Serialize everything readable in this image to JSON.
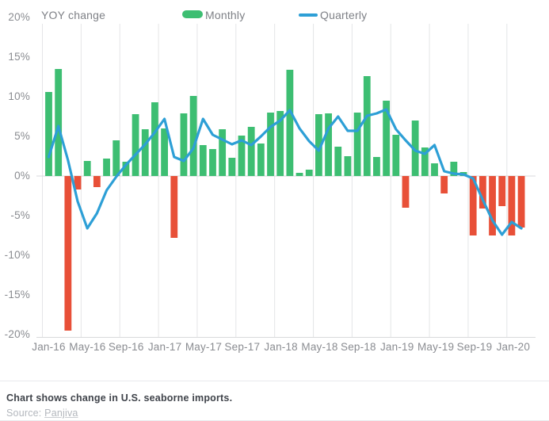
{
  "header": {
    "title": "YOY change",
    "legend": [
      {
        "label": "Monthly",
        "swatch": "green-bar-swatch"
      },
      {
        "label": "Quarterly",
        "swatch": "blue-line-swatch"
      }
    ]
  },
  "chart_data": {
    "type": "bar",
    "title": "YOY change",
    "xlabel": "",
    "ylabel": "YOY change (%)",
    "ylim": [
      -20,
      20
    ],
    "grid": "vertical-only",
    "legend_position": "top",
    "unit": "%",
    "months": [
      "Jan-16",
      "Feb-16",
      "Mar-16",
      "Apr-16",
      "May-16",
      "Jun-16",
      "Jul-16",
      "Aug-16",
      "Sep-16",
      "Oct-16",
      "Nov-16",
      "Dec-16",
      "Jan-17",
      "Feb-17",
      "Mar-17",
      "Apr-17",
      "May-17",
      "Jun-17",
      "Jul-17",
      "Aug-17",
      "Sep-17",
      "Oct-17",
      "Nov-17",
      "Dec-17",
      "Jan-18",
      "Feb-18",
      "Mar-18",
      "Apr-18",
      "May-18",
      "Jun-18",
      "Jul-18",
      "Aug-18",
      "Sep-18",
      "Oct-18",
      "Nov-18",
      "Dec-18",
      "Jan-19",
      "Feb-19",
      "Mar-19",
      "Apr-19",
      "May-19",
      "Jun-19",
      "Jul-19",
      "Aug-19",
      "Sep-19",
      "Oct-19",
      "Nov-19",
      "Dec-19",
      "Jan-20",
      "Feb-20"
    ],
    "series": [
      {
        "name": "Monthly",
        "type": "bar",
        "values": [
          10.6,
          13.5,
          -19.5,
          -1.7,
          1.9,
          -1.4,
          2.2,
          4.5,
          1.8,
          7.8,
          5.9,
          9.3,
          6.0,
          -7.8,
          7.9,
          10.1,
          3.9,
          3.4,
          5.9,
          2.3,
          5.1,
          6.2,
          4.1,
          8.0,
          8.2,
          13.4,
          0.4,
          0.8,
          7.8,
          7.9,
          3.7,
          2.5,
          8.0,
          12.6,
          2.4,
          9.5,
          5.2,
          -4.0,
          7.0,
          3.6,
          1.6,
          -2.2,
          1.8,
          0.5,
          -7.5,
          -4.1,
          -7.5,
          -3.8,
          -7.5,
          -6.5
        ]
      },
      {
        "name": "Quarterly",
        "type": "line",
        "values": [
          2.4,
          6.3,
          2.0,
          -3.2,
          -6.6,
          -4.7,
          -1.8,
          -0.1,
          1.4,
          2.7,
          4.0,
          5.5,
          7.2,
          2.4,
          1.9,
          3.5,
          7.2,
          5.2,
          4.6,
          4.0,
          4.5,
          3.9,
          5.0,
          6.2,
          7.0,
          8.3,
          6.0,
          4.4,
          3.2,
          6.0,
          7.5,
          5.7,
          5.7,
          7.6,
          7.9,
          8.4,
          5.9,
          4.5,
          3.2,
          2.8,
          3.9,
          0.6,
          0.3,
          0.2,
          -0.3,
          -3.0,
          -5.6,
          -7.4,
          -5.8,
          -6.6
        ]
      }
    ],
    "x_tick_labels": [
      "Jan-16",
      "May-16",
      "Sep-16",
      "Jan-17",
      "May-17",
      "Sep-17",
      "Jan-18",
      "May-18",
      "Sep-18",
      "Jan-19",
      "May-19",
      "Sep-19",
      "Jan-20"
    ],
    "y_tick_labels": [
      "20%",
      "15%",
      "10%",
      "5%",
      "0%",
      "-5%",
      "-10%",
      "-15%",
      "-20%"
    ],
    "colors": {
      "positive": "#3dbe72",
      "negative": "#e85038",
      "line": "#2d9fd6",
      "grid": "#e4e5e7",
      "axis": "#d9dadc"
    }
  },
  "footer": {
    "note": "Chart shows change in U.S. seaborne imports.",
    "source_label": "Source: ",
    "source_link": "Panjiva"
  }
}
